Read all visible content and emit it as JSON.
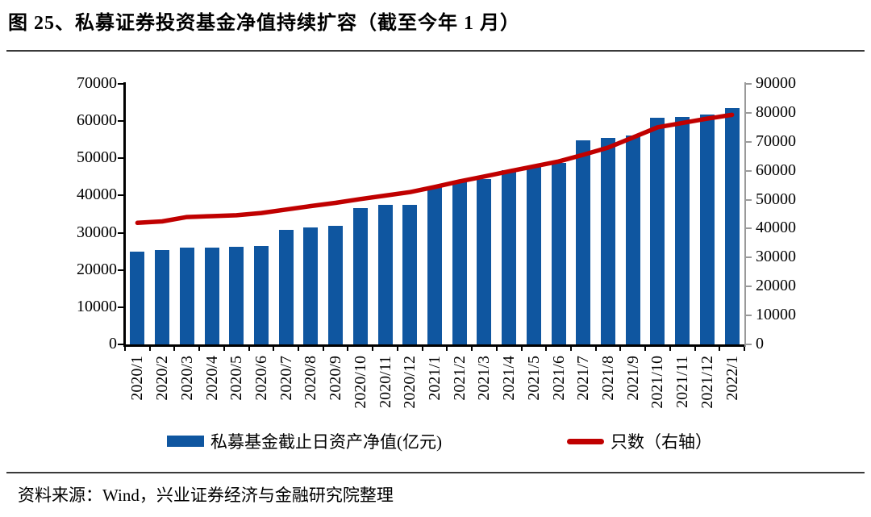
{
  "title": "图 25、私募证券投资基金净值持续扩容（截至今年 1 月）",
  "source": "资料来源：Wind，兴业证券经济与金融研究院整理",
  "legend": {
    "bar_label": "私募基金截止日资产净值(亿元)",
    "line_label": "只数（右轴）"
  },
  "colors": {
    "bar": "#0F56A0",
    "line": "#C00000",
    "axis": "#000000",
    "right_axis": "#9a9a9a",
    "text": "#000000"
  },
  "chart_data": {
    "type": "bar",
    "subtype": "bar-with-line-overlay",
    "title": "私募证券投资基金净值持续扩容（截至今年1月）",
    "categories": [
      "2020/1",
      "2020/2",
      "2020/3",
      "2020/4",
      "2020/5",
      "2020/6",
      "2020/7",
      "2020/8",
      "2020/9",
      "2020/10",
      "2020/11",
      "2020/12",
      "2021/1",
      "2021/2",
      "2021/3",
      "2021/4",
      "2021/5",
      "2021/6",
      "2021/7",
      "2021/8",
      "2021/9",
      "2021/10",
      "2021/11",
      "2021/12",
      "2022/1"
    ],
    "series": [
      {
        "name": "私募基金截止日资产净值(亿元)",
        "type": "bar",
        "axis": "left",
        "values": [
          25000,
          25300,
          25900,
          25900,
          26300,
          26500,
          30800,
          31400,
          31800,
          36700,
          37400,
          37600,
          42500,
          44000,
          44500,
          46800,
          47800,
          48800,
          54900,
          55500,
          56100,
          60900,
          61100,
          61700,
          63500
        ]
      },
      {
        "name": "只数（右轴）",
        "type": "line",
        "axis": "right",
        "values": [
          42000,
          42500,
          44000,
          44300,
          44600,
          45400,
          46600,
          47800,
          48900,
          50200,
          51400,
          52600,
          54400,
          56300,
          58000,
          59800,
          61500,
          63200,
          65500,
          68000,
          71500,
          75000,
          76500,
          78000,
          79300
        ]
      }
    ],
    "left_axis": {
      "min": 0,
      "max": 70000,
      "step": 10000,
      "ticks": [
        "0",
        "10000",
        "20000",
        "30000",
        "40000",
        "50000",
        "60000",
        "70000"
      ]
    },
    "right_axis": {
      "min": 0,
      "max": 90000,
      "step": 10000,
      "ticks": [
        "0",
        "10000",
        "20000",
        "30000",
        "40000",
        "50000",
        "60000",
        "70000",
        "80000",
        "90000"
      ]
    },
    "grid": false,
    "legend_position": "bottom",
    "x_tick_rotation": 90
  }
}
